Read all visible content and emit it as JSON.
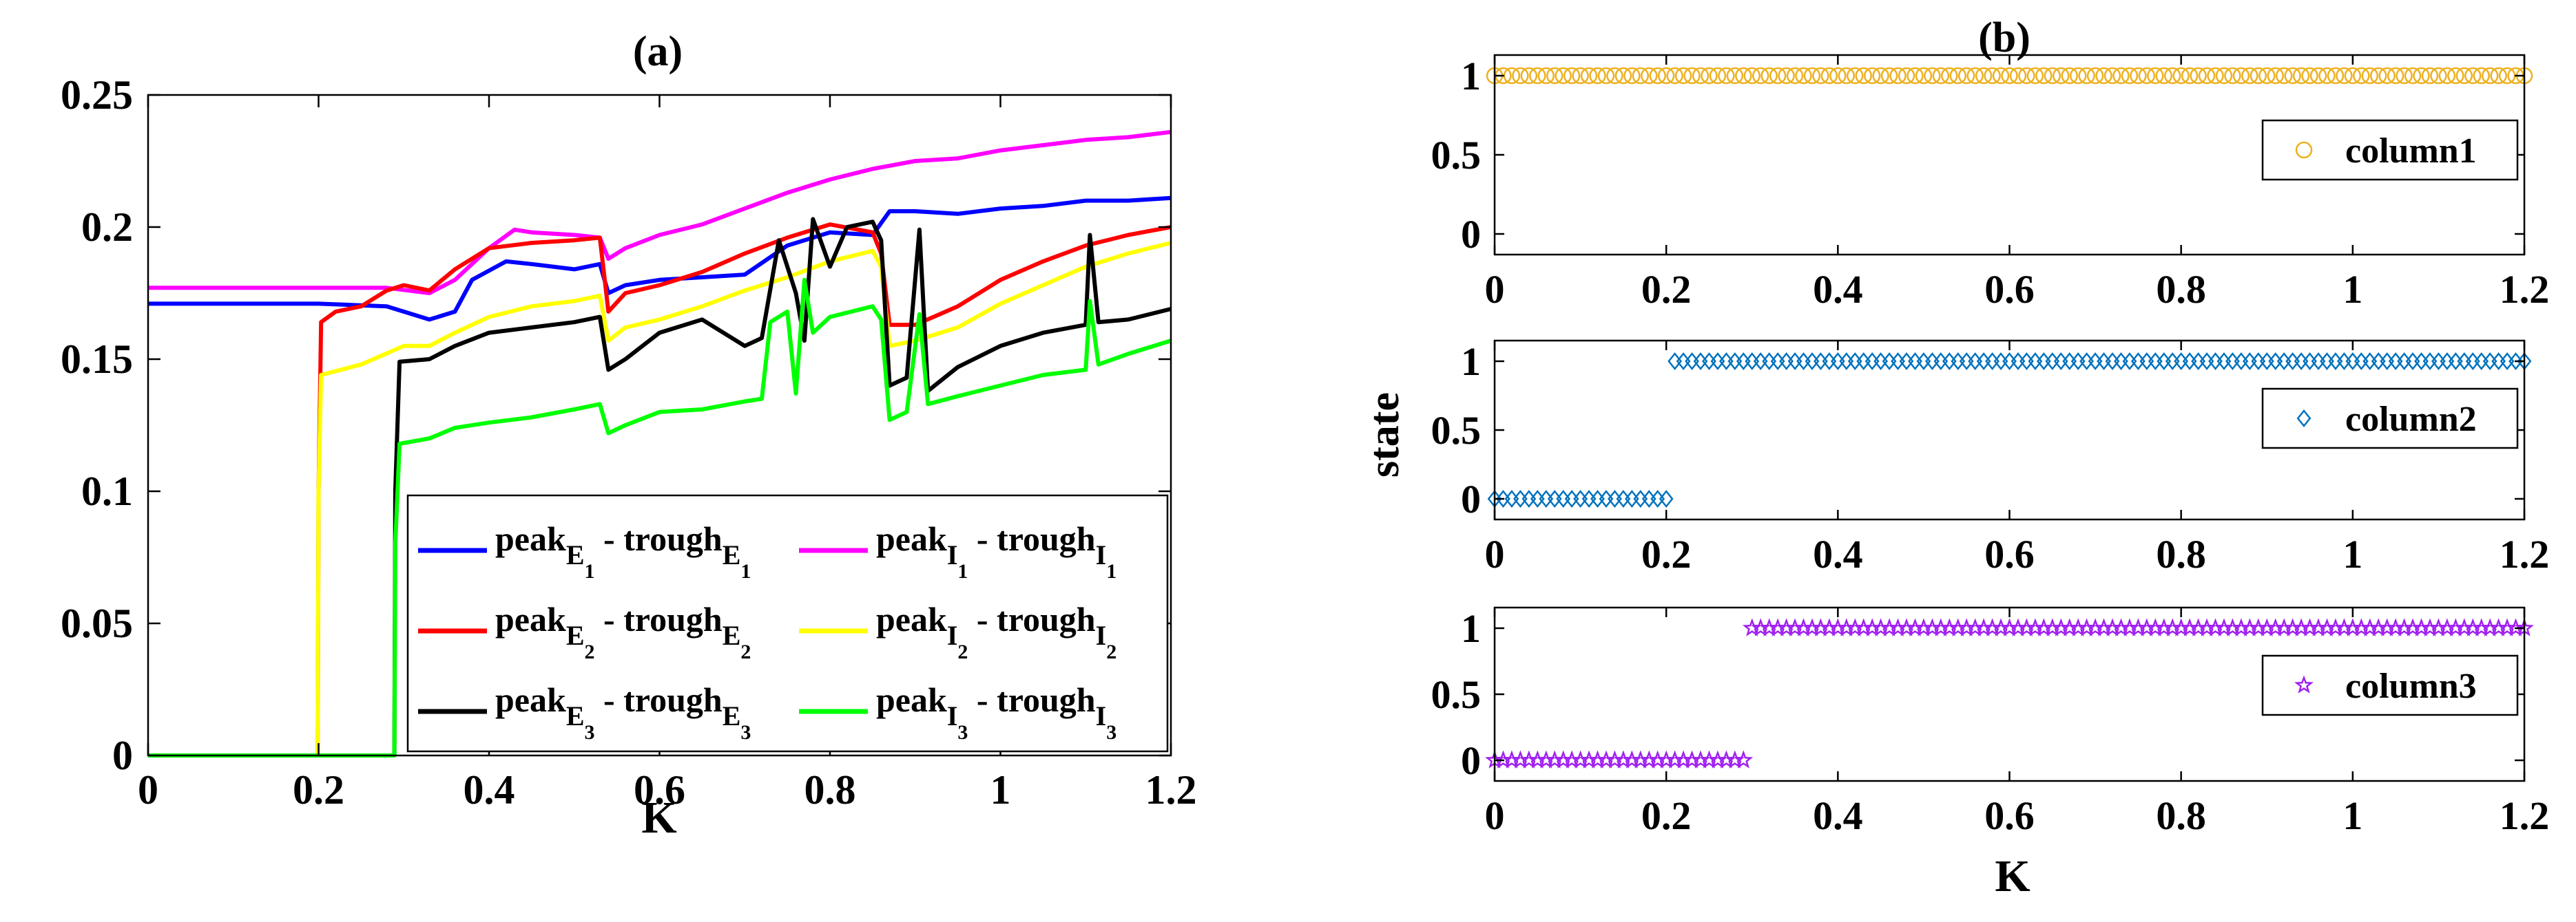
{
  "chart_data": [
    {
      "panel": "a",
      "type": "line",
      "title": "(a)",
      "xlabel": "K",
      "ylabel": "",
      "xlim": [
        0,
        1.2
      ],
      "ylim": [
        0,
        0.25
      ],
      "xticks": [
        "0",
        "0.2",
        "0.4",
        "0.6",
        "0.8",
        "1",
        "1.2"
      ],
      "yticks": [
        "0",
        "0.05",
        "0.1",
        "0.15",
        "0.2",
        "0.25"
      ],
      "legend_location": "bottom-right",
      "series": [
        {
          "name": "peak_E1 - trough_E1",
          "legend": {
            "a": "peak",
            "as": "E",
            "asub": "1",
            "b": " - trough",
            "bs": "E",
            "bsub": "1"
          },
          "color": "#0000ff",
          "x": [
            0,
            0.1,
            0.2,
            0.28,
            0.33,
            0.36,
            0.38,
            0.42,
            0.45,
            0.5,
            0.53,
            0.54,
            0.56,
            0.6,
            0.65,
            0.7,
            0.75,
            0.8,
            0.85,
            0.87,
            0.9,
            0.95,
            1.0,
            1.05,
            1.1,
            1.15,
            1.2
          ],
          "y": [
            0.171,
            0.171,
            0.171,
            0.17,
            0.165,
            0.168,
            0.18,
            0.187,
            0.186,
            0.184,
            0.186,
            0.175,
            0.178,
            0.18,
            0.181,
            0.182,
            0.193,
            0.198,
            0.197,
            0.206,
            0.206,
            0.205,
            0.207,
            0.208,
            0.21,
            0.21,
            0.211
          ]
        },
        {
          "name": "peak_I1 - trough_I1",
          "legend": {
            "a": "peak",
            "as": "I",
            "asub": "1",
            "b": " - trough",
            "bs": "I",
            "bsub": "1"
          },
          "color": "#ff00ff",
          "x": [
            0,
            0.1,
            0.2,
            0.28,
            0.33,
            0.36,
            0.4,
            0.43,
            0.45,
            0.5,
            0.53,
            0.54,
            0.56,
            0.6,
            0.65,
            0.7,
            0.75,
            0.8,
            0.85,
            0.9,
            0.95,
            1.0,
            1.05,
            1.1,
            1.15,
            1.2
          ],
          "y": [
            0.177,
            0.177,
            0.177,
            0.177,
            0.175,
            0.18,
            0.192,
            0.199,
            0.198,
            0.197,
            0.196,
            0.188,
            0.192,
            0.197,
            0.201,
            0.207,
            0.213,
            0.218,
            0.222,
            0.225,
            0.226,
            0.229,
            0.231,
            0.233,
            0.234,
            0.236
          ]
        },
        {
          "name": "peak_E2 - trough_E2",
          "legend": {
            "a": "peak",
            "as": "E",
            "asub": "2",
            "b": " - trough",
            "bs": "E",
            "bsub": "2"
          },
          "color": "#ff0000",
          "x": [
            0,
            0.199,
            0.2,
            0.203,
            0.22,
            0.25,
            0.28,
            0.3,
            0.33,
            0.36,
            0.4,
            0.45,
            0.5,
            0.53,
            0.54,
            0.56,
            0.6,
            0.65,
            0.7,
            0.75,
            0.8,
            0.85,
            0.86,
            0.87,
            0.9,
            0.95,
            1.0,
            1.05,
            1.1,
            1.15,
            1.2
          ],
          "y": [
            0,
            0,
            0.1,
            0.164,
            0.168,
            0.17,
            0.176,
            0.178,
            0.176,
            0.184,
            0.192,
            0.194,
            0.195,
            0.196,
            0.168,
            0.175,
            0.178,
            0.183,
            0.19,
            0.196,
            0.201,
            0.198,
            0.19,
            0.163,
            0.163,
            0.17,
            0.18,
            0.187,
            0.193,
            0.197,
            0.2
          ]
        },
        {
          "name": "peak_I2 - trough_I2",
          "legend": {
            "a": "peak",
            "as": "I",
            "asub": "2",
            "b": " - trough",
            "bs": "I",
            "bsub": "2"
          },
          "color": "#ffff00",
          "x": [
            0,
            0.199,
            0.2,
            0.203,
            0.25,
            0.3,
            0.33,
            0.36,
            0.4,
            0.45,
            0.5,
            0.53,
            0.54,
            0.56,
            0.6,
            0.65,
            0.7,
            0.75,
            0.8,
            0.85,
            0.86,
            0.87,
            0.9,
            0.95,
            1.0,
            1.05,
            1.1,
            1.15,
            1.2
          ],
          "y": [
            0,
            0,
            0.1,
            0.144,
            0.148,
            0.155,
            0.155,
            0.16,
            0.166,
            0.17,
            0.172,
            0.174,
            0.157,
            0.162,
            0.165,
            0.17,
            0.176,
            0.181,
            0.187,
            0.191,
            0.185,
            0.155,
            0.157,
            0.162,
            0.171,
            0.178,
            0.185,
            0.19,
            0.194
          ]
        },
        {
          "name": "peak_E3 - trough_E3",
          "legend": {
            "a": "peak",
            "as": "E",
            "asub": "3",
            "b": " - trough",
            "bs": "E",
            "bsub": "3"
          },
          "color": "#000000",
          "x": [
            0,
            0.289,
            0.29,
            0.295,
            0.33,
            0.36,
            0.4,
            0.45,
            0.5,
            0.53,
            0.54,
            0.56,
            0.6,
            0.65,
            0.7,
            0.72,
            0.74,
            0.76,
            0.77,
            0.78,
            0.8,
            0.82,
            0.85,
            0.86,
            0.87,
            0.89,
            0.905,
            0.915,
            0.95,
            1.0,
            1.05,
            1.1,
            1.105,
            1.115,
            1.15,
            1.2
          ],
          "y": [
            0,
            0,
            0.1,
            0.149,
            0.15,
            0.155,
            0.16,
            0.162,
            0.164,
            0.166,
            0.146,
            0.15,
            0.16,
            0.165,
            0.155,
            0.158,
            0.195,
            0.175,
            0.157,
            0.203,
            0.185,
            0.2,
            0.202,
            0.195,
            0.14,
            0.143,
            0.199,
            0.138,
            0.147,
            0.155,
            0.16,
            0.163,
            0.197,
            0.164,
            0.165,
            0.169
          ]
        },
        {
          "name": "peak_I3 - trough_I3",
          "legend": {
            "a": "peak",
            "as": "I",
            "asub": "3",
            "b": " - trough",
            "bs": "I",
            "bsub": "3"
          },
          "color": "#00ff00",
          "x": [
            0,
            0.289,
            0.29,
            0.295,
            0.33,
            0.36,
            0.4,
            0.45,
            0.5,
            0.53,
            0.54,
            0.56,
            0.6,
            0.65,
            0.7,
            0.72,
            0.73,
            0.75,
            0.76,
            0.77,
            0.78,
            0.8,
            0.85,
            0.86,
            0.87,
            0.89,
            0.905,
            0.915,
            0.95,
            1.0,
            1.05,
            1.1,
            1.105,
            1.115,
            1.15,
            1.2
          ],
          "y": [
            0,
            0,
            0.08,
            0.118,
            0.12,
            0.124,
            0.126,
            0.128,
            0.131,
            0.133,
            0.122,
            0.125,
            0.13,
            0.131,
            0.134,
            0.135,
            0.164,
            0.168,
            0.137,
            0.18,
            0.16,
            0.166,
            0.17,
            0.165,
            0.127,
            0.13,
            0.167,
            0.133,
            0.136,
            0.14,
            0.144,
            0.146,
            0.172,
            0.148,
            0.152,
            0.157
          ]
        }
      ]
    },
    {
      "panel": "b",
      "type": "scatter",
      "title": "(b)",
      "xlabel": "K",
      "ylabel": "state",
      "xlim": [
        0,
        1.2
      ],
      "xticks": [
        "0",
        "0.2",
        "0.4",
        "0.6",
        "0.8",
        "1",
        "1.2"
      ],
      "yticks": [
        "0",
        "0.5",
        "1"
      ],
      "legend_location": "right",
      "subplots": [
        {
          "name": "column1",
          "marker": "circle",
          "color": "#edb120",
          "x_step": 0.01,
          "switch_at": 0.0,
          "values": "0 below switch_at, 1 from switch_at"
        },
        {
          "name": "column2",
          "marker": "diamond",
          "color": "#0072bd",
          "x_step": 0.01,
          "switch_at": 0.21,
          "values": "0 below switch_at, 1 from switch_at"
        },
        {
          "name": "column3",
          "marker": "pentagram",
          "color": "#a020f0",
          "x_step": 0.01,
          "switch_at": 0.3,
          "values": "0 below switch_at, 1 from switch_at"
        }
      ]
    }
  ]
}
